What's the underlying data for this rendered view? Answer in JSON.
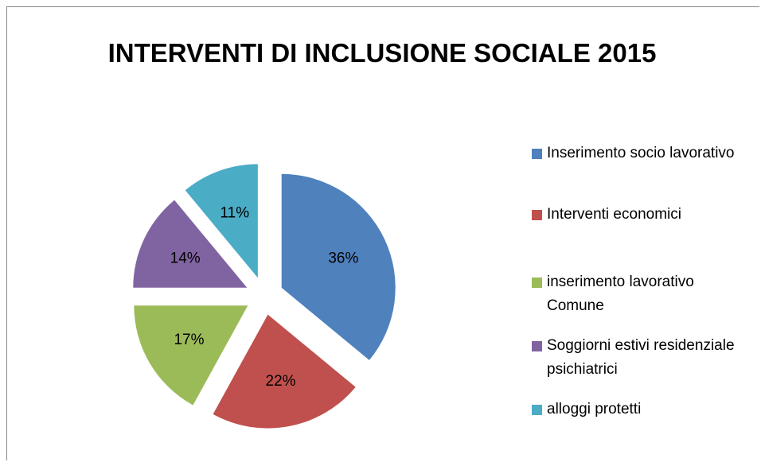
{
  "chart_data": {
    "type": "pie",
    "title": "INTERVENTI DI INCLUSIONE SOCIALE 2015",
    "categories": [
      "Inserimento socio lavorativo",
      "Interventi  economici",
      "inserimento lavorativo Comune",
      "Soggiorni estivi residenziale psichiatrici",
      "alloggi protetti"
    ],
    "values": [
      36,
      22,
      17,
      14,
      11
    ],
    "value_labels": [
      "36%",
      "22%",
      "17%",
      "14%",
      "11%"
    ],
    "colors": [
      "#4f81bd",
      "#c0504d",
      "#9bbb59",
      "#8064a2",
      "#4bacc6"
    ],
    "legend": "right"
  }
}
